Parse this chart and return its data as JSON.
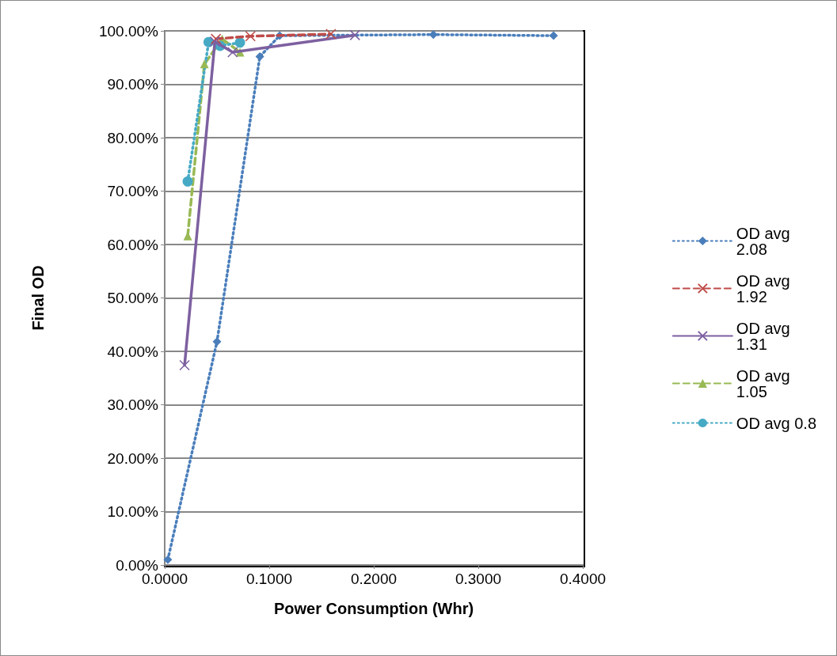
{
  "chart_data": {
    "type": "line",
    "xlabel": "Power Consumption (Whr)",
    "ylabel": "Final OD",
    "xlim": [
      0,
      0.4
    ],
    "xticks": [
      {
        "value": 0,
        "label": "0.0000"
      },
      {
        "value": 0.1,
        "label": "0.1000"
      },
      {
        "value": 0.2,
        "label": "0.2000"
      },
      {
        "value": 0.3,
        "label": "0.3000"
      },
      {
        "value": 0.4,
        "label": "0.4000"
      }
    ],
    "ylim": [
      0,
      100
    ],
    "yticks": [
      {
        "value": 0,
        "label": "0.00%"
      },
      {
        "value": 10,
        "label": "10.00%"
      },
      {
        "value": 20,
        "label": "20.00%"
      },
      {
        "value": 30,
        "label": "30.00%"
      },
      {
        "value": 40,
        "label": "40.00%"
      },
      {
        "value": 50,
        "label": "50.00%"
      },
      {
        "value": 60,
        "label": "60.00%"
      },
      {
        "value": 70,
        "label": "70.00%"
      },
      {
        "value": 80,
        "label": "80.00%"
      },
      {
        "value": 90,
        "label": "90.00%"
      },
      {
        "value": 100,
        "label": "100.00%"
      }
    ],
    "grid": "y",
    "legend": "right",
    "series": [
      {
        "name": "OD avg 2.08",
        "color": "#4a7ebb",
        "marker": "diamond",
        "line_style": "dotted",
        "x": [
          0.003,
          0.05,
          0.091,
          0.11,
          0.257,
          0.372
        ],
        "values": [
          1.0,
          41.8,
          95.2,
          99.1,
          99.3,
          99.1
        ]
      },
      {
        "name": "OD avg 1.92",
        "color": "#be4b48",
        "marker": "cross",
        "line_style": "dashed",
        "x": [
          0.049,
          0.082,
          0.159
        ],
        "values": [
          98.5,
          99.0,
          99.4
        ]
      },
      {
        "name": "OD avg 1.31",
        "color": "#7d60a0",
        "marker": "cross",
        "line_style": "solid",
        "x": [
          0.019,
          0.048,
          0.065,
          0.182
        ],
        "values": [
          37.4,
          98.0,
          96.0,
          99.2
        ]
      },
      {
        "name": "OD avg 1.05",
        "color": "#98b954",
        "marker": "triangle",
        "line_style": "dashed",
        "x": [
          0.022,
          0.038,
          0.055,
          0.072
        ],
        "values": [
          61.6,
          93.8,
          98.5,
          96.0
        ]
      },
      {
        "name": "OD avg 0.8",
        "color": "#46aac5",
        "marker": "circle",
        "line_style": "dotted",
        "x": [
          0.022,
          0.042,
          0.053,
          0.072
        ],
        "values": [
          71.8,
          97.9,
          97.2,
          97.8
        ]
      }
    ]
  }
}
